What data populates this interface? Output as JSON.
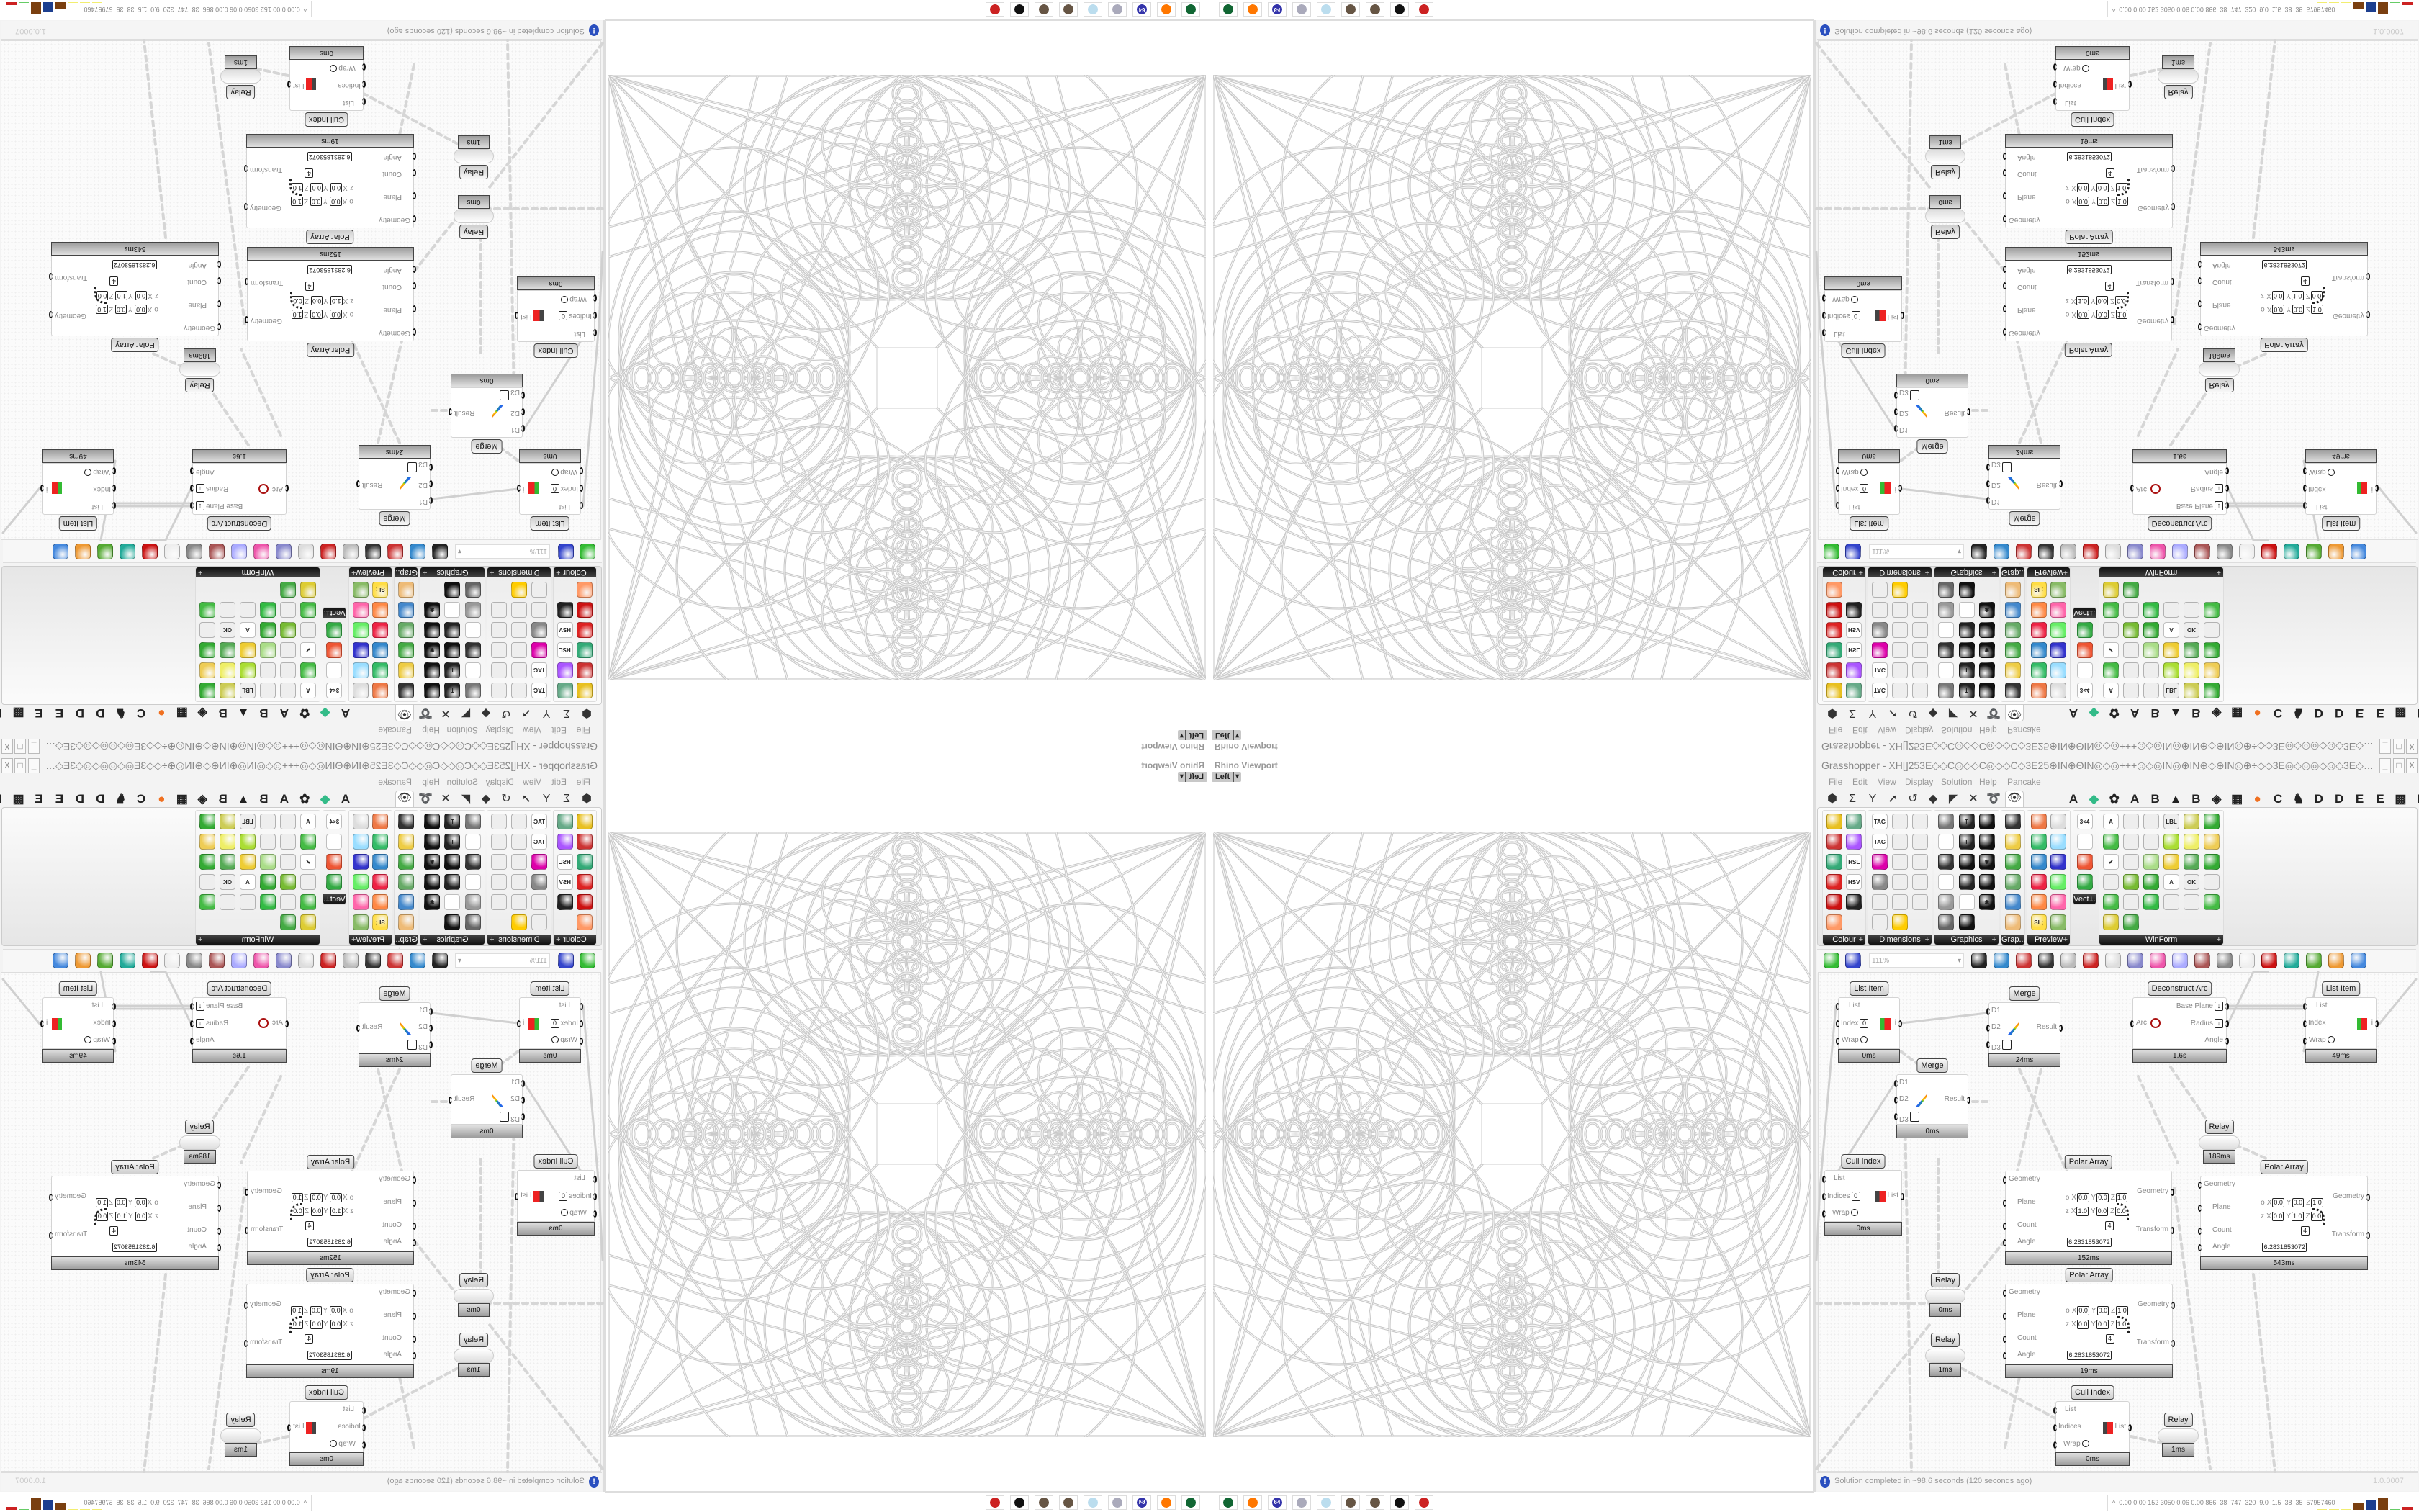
{
  "viewport": {
    "title": "Rhino Viewport",
    "view": "Left"
  },
  "window": {
    "title": "Grasshopper - XH[]253E◇◇C◎◇◇C◎◇◇C◇3E25⊕IN⊕ΘIN◎◇◎+++◎◇◎IN◎⊕IN⊕◇⊕IN◎⊕÷◇◇3E◎◇◎◎◇◎◇3E◇÷◎◎IN⊕◇⊕3E◎3E⊞+25+⊞3E◎3E⊕◇⊕◇◇3E⊞+÷◇C...",
    "controls": [
      "_",
      "□",
      "X"
    ]
  },
  "menu": [
    "File",
    "Edit",
    "View",
    "Display",
    "Solution",
    "Help",
    "Pancake"
  ],
  "tab_icons": [
    {
      "name": "params-hexagon-icon",
      "glyph": "⬢"
    },
    {
      "name": "maths-sigma-icon",
      "glyph": "Σ"
    },
    {
      "name": "sets-y-icon",
      "glyph": "Y"
    },
    {
      "name": "vector-arrow-icon",
      "glyph": "➚"
    },
    {
      "name": "curve-hook-icon",
      "glyph": "↺"
    },
    {
      "name": "surface-icon",
      "glyph": "◆"
    },
    {
      "name": "mesh-icon",
      "glyph": "◤"
    },
    {
      "name": "intersect-icon",
      "glyph": "✕"
    },
    {
      "name": "transform-swirl-icon",
      "glyph": "➰"
    },
    {
      "name": "display-eye-icon",
      "glyph": "👁"
    }
  ],
  "tab_letters": [
    "A",
    "◆",
    "✿",
    "A",
    "B",
    "▲",
    "B",
    "◈",
    "▦",
    "●",
    "C",
    "♞",
    "D",
    "D",
    "E",
    "E",
    "▩",
    "E"
  ],
  "ribbon": {
    "groups": [
      {
        "label": "Colour",
        "cols": 2,
        "icons": [
          [
            "colour-wheel-icon",
            "#e8c020",
            ""
          ],
          [
            "gradient-icon",
            "#6a8",
            ""
          ],
          [
            "colour-box-icon",
            "#c33",
            ""
          ],
          [
            "colour-triangle-icon",
            "#a5f",
            ""
          ],
          [
            "colour-cube-icon",
            "#3a7",
            ""
          ],
          [
            "hsl-icon",
            "#fff",
            "HSL"
          ],
          [
            "colour-sphere-icon",
            "#d22",
            ""
          ],
          [
            "hsv-icon",
            "#fff",
            "HSV"
          ],
          [
            "sphere-red-icon",
            "#c11",
            ""
          ],
          [
            "prism-icon",
            "#222",
            ""
          ],
          [
            "swatch-gradient-icon",
            "#f96",
            ""
          ]
        ]
      },
      {
        "label": "Dimensions",
        "cols": 3,
        "icons": [
          [
            "tag-delete-icon",
            "#fff",
            "TAG"
          ],
          [
            "linear-dimension-icon",
            "#eee",
            ""
          ],
          [
            "angle-dimension-icon",
            "#eee",
            ""
          ],
          [
            "text-tag-icon",
            "#fff",
            "TAG"
          ],
          [
            "line-pen-icon",
            "#eee",
            ""
          ],
          [
            "box-dimension-icon",
            "#eee",
            ""
          ],
          [
            "magenta-swatch-icon",
            "#d0a",
            ""
          ],
          [
            "serial-dimension-icon",
            "#eee",
            ""
          ],
          [
            "arrow-dimension-icon",
            "#eee",
            ""
          ],
          [
            "hatch-grid-icon",
            "#888",
            ""
          ],
          [
            "angular-dimension-icon",
            "#eee",
            ""
          ],
          [
            "radial-dimension-icon",
            "#eee",
            ""
          ],
          [
            "arc-dimension-icon",
            "#eee",
            ""
          ],
          [
            "curve-dimension-icon",
            "#eee",
            ""
          ],
          [
            "select-dimension-icon",
            "#eee",
            ""
          ],
          [
            "aligned-dimension-icon",
            "#eee",
            ""
          ],
          [
            "warning-triangle-icon",
            "#fc0",
            ""
          ]
        ]
      },
      {
        "label": "Graphics",
        "cols": 3,
        "icons": [
          [
            "disc-icon",
            "#777",
            ""
          ],
          [
            "text-circle-icon",
            "#222",
            "T"
          ],
          [
            "eye-circle-icon",
            "#111",
            ""
          ],
          [
            "dotted-circle-icon",
            "#fff",
            ""
          ],
          [
            "text-t-icon",
            "#222",
            "T"
          ],
          [
            "rounded-square-icon",
            "#111",
            ""
          ],
          [
            "blur-dot-icon",
            "#333",
            ""
          ],
          [
            "list-circle-icon",
            "#111",
            ""
          ],
          [
            "asterisk-circle-icon",
            "#111",
            "✱"
          ],
          [
            "ring-icon",
            "#fff",
            ""
          ],
          [
            "link-icon",
            "#222",
            ""
          ],
          [
            "save-mountain-icon",
            "#111",
            ""
          ],
          [
            "gradient-sphere-icon",
            "#999",
            ""
          ],
          [
            "dotted-ring-icon",
            "#fff",
            ""
          ],
          [
            "save-asterisk-icon",
            "#111",
            "✱"
          ],
          [
            "shaded-sphere-icon",
            "#666",
            ""
          ],
          [
            "image-circle-icon",
            "#111",
            ""
          ]
        ]
      },
      {
        "label": "Grap...",
        "cols": 1,
        "icons": [
          [
            "histogram-icon",
            "#333",
            ""
          ],
          [
            "gradient-legend-icon",
            "#ec4",
            ""
          ],
          [
            "pie-chart-icon",
            "#4a4",
            ""
          ],
          [
            "line-graph-icon",
            "#6a6",
            ""
          ],
          [
            "image-stack-icon",
            "#48c",
            ""
          ],
          [
            "line-chart-icon",
            "#eb7",
            ""
          ]
        ]
      },
      {
        "label": "Preview",
        "cols": 2,
        "icons": [
          [
            "gem-icon",
            "#e74",
            ""
          ],
          [
            "camera-icon",
            "#ddd",
            ""
          ],
          [
            "material-sphere-icon",
            "#3b6",
            ""
          ],
          [
            "image-trees-icon",
            "#9df",
            ""
          ],
          [
            "blobs-blue-icon",
            "#38c",
            ""
          ],
          [
            "heart-blue-icon",
            "#33c",
            ""
          ],
          [
            "blobs-red-icon",
            "#e24",
            ""
          ],
          [
            "heart-green-icon",
            "#6e6",
            ""
          ],
          [
            "gradient-diagonal-icon",
            "#f84",
            ""
          ],
          [
            "hearts-pink-icon",
            "#f6a",
            ""
          ],
          [
            "text-sl-icon",
            "#fd4",
            "SL;"
          ],
          [
            "image-tree-icon",
            "#8b6",
            ""
          ]
        ]
      },
      {
        "label": "Vect...",
        "cols": 1,
        "icons": [
          [
            "number-sort-icon",
            "#fff",
            "3<4"
          ],
          [
            "path-icon",
            "#fff",
            ""
          ],
          [
            "arrows-red-icon",
            "#e53",
            ""
          ],
          [
            "arrows-green-icon",
            "#3a4",
            ""
          ]
        ]
      },
      {
        "label": "WinForm",
        "cols": 6,
        "icons": [
          [
            "text-a-icon",
            "#fff",
            "A"
          ],
          [
            "list-box-icon",
            "#eee",
            ""
          ],
          [
            "text-lines-icon",
            "#eee",
            ""
          ],
          [
            "label-icon",
            "#eee",
            "LBL"
          ],
          [
            "chart-area-icon",
            "#cc5",
            ""
          ],
          [
            "grid-download-icon",
            "#3a3",
            ""
          ],
          [
            "hatch-green-icon",
            "#4b4",
            ""
          ],
          [
            "slider-icon",
            "#eee",
            ""
          ],
          [
            "range-slider-icon",
            "#eee",
            ""
          ],
          [
            "grid-green-icon",
            "#ad3",
            ""
          ],
          [
            "pie-yellow-icon",
            "#ee6",
            ""
          ],
          [
            "layout-icon",
            "#ec5",
            ""
          ],
          [
            "checkbox-icon",
            "#fff",
            "✔"
          ],
          [
            "text-block-icon",
            "#eee",
            ""
          ],
          [
            "image-icon",
            "#ad8",
            ""
          ],
          [
            "pie-chart-yellow-icon",
            "#ec3",
            ""
          ],
          [
            "person-icon",
            "#5a5",
            ""
          ],
          [
            "list-view-icon",
            "#3a3",
            ""
          ],
          [
            "numeric-icon",
            "#eee",
            ""
          ],
          [
            "cube-icon",
            "#7b3",
            ""
          ],
          [
            "split-icon",
            "#3a3",
            ""
          ],
          [
            "font-a-icon",
            "#fff",
            "A"
          ],
          [
            "button-ok-icon",
            "#eee",
            "OK"
          ],
          [
            "toggle-icon",
            "#eee",
            ""
          ],
          [
            "bar-green-icon",
            "#4b4",
            ""
          ],
          [
            "list-lines-icon",
            "#eee",
            ""
          ],
          [
            "panel-green-icon",
            "#3b4",
            ""
          ],
          [
            "calendar-icon",
            "#eee",
            ""
          ],
          [
            "scroll-icon",
            "#eee",
            ""
          ],
          [
            "progress-icon",
            "#4b4",
            ""
          ],
          [
            "bar-chart-icon",
            "#dc3",
            ""
          ],
          [
            "arrow-panel-icon",
            "#4a4",
            ""
          ]
        ]
      }
    ]
  },
  "toolbar": {
    "zoom": "111%",
    "icons": [
      [
        "new-document-icon",
        "#3b3"
      ],
      [
        "save-icon",
        "#34c"
      ],
      [
        "zoom-extents-icon",
        "#222"
      ],
      [
        "preview-eye-icon",
        "#38c"
      ],
      [
        "sketch-icon",
        "#c33"
      ],
      [
        "plugin-icon",
        "#333"
      ],
      [
        "email-icon",
        "#bbb"
      ],
      [
        "gha-icon",
        "#c22"
      ],
      [
        "document-preview-icon",
        "#ddd"
      ],
      [
        "search-icon",
        "#88c"
      ],
      [
        "package-icon",
        "#e5a"
      ],
      [
        "bulb-icon",
        "#aaf"
      ],
      [
        "wires-icon",
        "#a55"
      ],
      [
        "bell-icon",
        "#888"
      ],
      [
        "ring-icon",
        "#eee"
      ],
      [
        "gem-red-icon",
        "#c11"
      ],
      [
        "teal-shape-icon",
        "#2a9"
      ],
      [
        "green-shape-icon",
        "#5a3"
      ],
      [
        "orange-sphere-icon",
        "#e93"
      ],
      [
        "blue-sphere-icon",
        "#48d"
      ]
    ]
  },
  "canvas": {
    "nodes": [
      {
        "id": "list_item_1",
        "type": "list",
        "title": "List Item",
        "inputs": [
          "List",
          "Index",
          "Wrap"
        ],
        "outputs": [
          "i"
        ],
        "index_value": "0",
        "timing": "0ms"
      },
      {
        "id": "merge_1",
        "type": "merge",
        "title": "Merge",
        "inputs": [
          "D1",
          "D2",
          "D3"
        ],
        "outputs": [
          "Result"
        ],
        "timing": "24ms"
      },
      {
        "id": "deconstruct_arc",
        "type": "decon",
        "title": "Deconstruct Arc",
        "inputs": [
          "Arc"
        ],
        "outputs": [
          "Base Plane",
          "Radius",
          "Angle"
        ],
        "timing": "1.6s"
      },
      {
        "id": "list_item_2",
        "type": "list",
        "title": "List Item",
        "inputs": [
          "List",
          "Index",
          "Wrap"
        ],
        "outputs": [
          "i"
        ],
        "timing": "49ms"
      },
      {
        "id": "merge_2",
        "type": "merge",
        "title": "Merge",
        "inputs": [
          "D1",
          "D2",
          "D3"
        ],
        "outputs": [
          "Result"
        ],
        "timing": "0ms"
      },
      {
        "id": "relay_1",
        "type": "relay",
        "title": "Relay",
        "timing": "189ms"
      },
      {
        "id": "cull_index_1",
        "type": "cull",
        "title": "Cull Index",
        "inputs": [
          "List",
          "Indices",
          "Wrap"
        ],
        "outputs": [
          "List"
        ],
        "index_value": "0",
        "timing": "0ms"
      },
      {
        "id": "polar_array_1",
        "type": "polar",
        "title": "Polar Array",
        "inputs": [
          "Geometry",
          "Plane",
          "Count",
          "Angle"
        ],
        "outputs": [
          "Geometry",
          "Transform"
        ],
        "plane": {
          "origin_label": "o",
          "z_label": "z",
          "axes": [
            "X",
            "Y",
            "Z"
          ],
          "origin": [
            "0.0",
            "0.0",
            "1.0"
          ],
          "zaxis": [
            "1.0",
            "0.0",
            "0.0"
          ]
        },
        "count": "4",
        "angle": "6.2831853072",
        "timing": "152ms"
      },
      {
        "id": "polar_array_2",
        "type": "polar",
        "title": "Polar Array",
        "inputs": [
          "Geometry",
          "Plane",
          "Count",
          "Angle"
        ],
        "outputs": [
          "Geometry",
          "Transform"
        ],
        "plane": {
          "origin_label": "o",
          "z_label": "z",
          "axes": [
            "X",
            "Y",
            "Z"
          ],
          "origin": [
            "0.0",
            "0.0",
            "1.0"
          ],
          "zaxis": [
            "0.0",
            "1.0",
            "0.0"
          ]
        },
        "count": "4",
        "angle": "6.2831853072",
        "timing": "543ms"
      },
      {
        "id": "relay_2",
        "type": "relay",
        "title": "Relay",
        "timing": "0ms"
      },
      {
        "id": "relay_3",
        "type": "relay",
        "title": "Relay",
        "timing": "1ms"
      },
      {
        "id": "polar_array_3",
        "type": "polar",
        "title": "Polar Array",
        "inputs": [
          "Geometry",
          "Plane",
          "Count",
          "Angle"
        ],
        "outputs": [
          "Geometry",
          "Transform"
        ],
        "plane": {
          "origin_label": "o",
          "z_label": "z",
          "axes": [
            "X",
            "Y",
            "Z"
          ],
          "origin": [
            "0.0",
            "0.0",
            "1.0"
          ],
          "zaxis": [
            "0.0",
            "0.0",
            "1.0"
          ]
        },
        "count": "4",
        "angle": "6.2831853072",
        "timing": "19ms"
      },
      {
        "id": "cull_index_2",
        "type": "cull",
        "title": "Cull Index",
        "inputs": [
          "List",
          "Indices",
          "Wrap"
        ],
        "outputs": [
          "List"
        ],
        "timing": "0ms"
      },
      {
        "id": "relay_4",
        "type": "relay",
        "title": "Relay",
        "timing": "1ms"
      }
    ]
  },
  "status": {
    "message": "Solution completed in ~98.6 seconds (120 seconds ago)",
    "version": "1.0.0007",
    "icon": "info-icon"
  },
  "taskbar": {
    "icons": [
      [
        "monitor-app-icon",
        "#163",
        ""
      ],
      [
        "firefox-icon",
        "#f70",
        ""
      ],
      [
        "floppy-64-icon",
        "#33a",
        "64"
      ],
      [
        "scroll-icon",
        "#aab",
        ""
      ],
      [
        "notepad-icon",
        "#bde",
        ""
      ],
      [
        "coin-icon",
        "#654",
        ""
      ],
      [
        "coin-icon",
        "#654",
        ""
      ],
      [
        "badger-icon",
        "#111",
        ""
      ],
      [
        "red-app-icon",
        "#c22",
        ""
      ]
    ]
  },
  "tray": {
    "chevron": "^",
    "readout": "0.00 0.00 152 3050 0.06 0.00 866  38  747  320  9.0  1.5  38  35  57957460",
    "meters": [
      {
        "color": "#f2ee70",
        "level": 0.05
      },
      {
        "color": "#f2ee70",
        "level": 0.05
      },
      {
        "color": "#f2ee70",
        "level": 0.05
      },
      {
        "color": "#7a3f10",
        "level": 0.5
      },
      {
        "color": "#1d3f8f",
        "level": 0.8
      },
      {
        "color": "#7a3f10",
        "level": 0.95
      },
      {
        "color": "#6c6",
        "level": 0.05
      },
      {
        "color": "#c22",
        "level": 0.2
      }
    ]
  }
}
